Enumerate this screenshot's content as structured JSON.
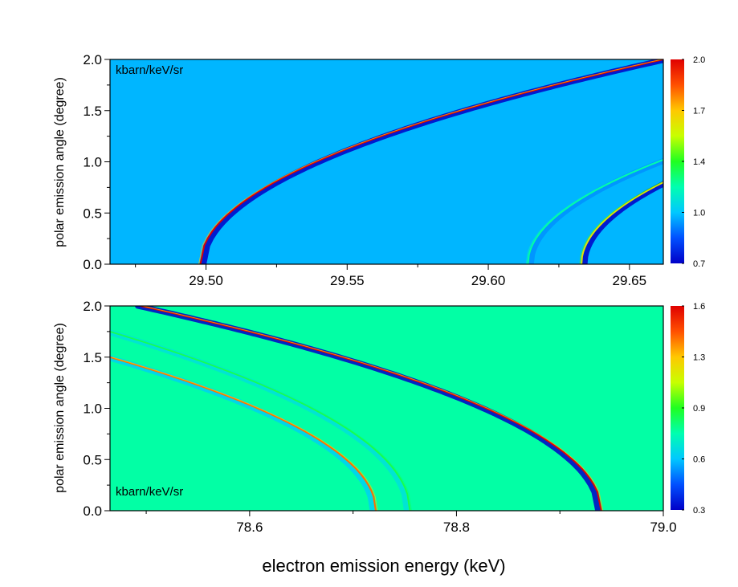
{
  "figure": {
    "xlabel": "electron emission energy (keV)"
  },
  "colormap": [
    "#0000c8",
    "#0050ff",
    "#00c8ff",
    "#00ffb0",
    "#20ff20",
    "#c8ff00",
    "#ffc800",
    "#ff5000",
    "#e00000"
  ],
  "chart_data": [
    {
      "type": "heatmap",
      "ylabel": "polar emission angle (degree)",
      "unit": "kbarn/keV/sr",
      "xlim": [
        29.466,
        29.662
      ],
      "ylim": [
        0.0,
        2.0
      ],
      "x_ticks": [
        "29.50",
        "29.55",
        "29.60",
        "29.65"
      ],
      "y_ticks": [
        "0.0",
        "0.5",
        "1.0",
        "1.5",
        "2.0"
      ],
      "background_value": 1.0,
      "colorbar": {
        "min": 0.7,
        "max": 2.0,
        "ticks": [
          "0.7",
          "1.0",
          "1.4",
          "1.7",
          "2.0"
        ]
      },
      "features": [
        {
          "shape": "upper-branch",
          "x_vertex": 29.498,
          "x_at_ymax": 29.662,
          "y_at_xmax": 2.0,
          "ridge_value": 2.0,
          "trough_value": 0.7
        },
        {
          "shape": "upper-branch",
          "x_vertex": 29.614,
          "x_at_ymax": 29.662,
          "y_at_xmax": 1.02,
          "ridge_value": 1.2,
          "trough_value": 0.95
        },
        {
          "shape": "upper-branch",
          "x_vertex": 29.633,
          "x_at_ymax": 29.662,
          "y_at_xmax": 0.8,
          "ridge_value": 1.6,
          "trough_value": 0.7
        }
      ]
    },
    {
      "type": "heatmap",
      "ylabel": "polar emission angle (degree)",
      "unit": "kbarn/keV/sr",
      "xlim": [
        78.465,
        79.0
      ],
      "ylim": [
        0.0,
        2.0
      ],
      "x_ticks": [
        "78.6",
        "78.8",
        "79.0"
      ],
      "y_ticks": [
        "0.0",
        "0.5",
        "1.0",
        "1.5",
        "2.0"
      ],
      "background_value": 0.8,
      "colorbar": {
        "min": 0.3,
        "max": 1.6,
        "ticks": [
          "0.3",
          "0.6",
          "0.9",
          "1.3",
          "1.6"
        ]
      },
      "features": [
        {
          "shape": "lower-branch",
          "x_vertex": 78.94,
          "x_at_ymax": 78.495,
          "ridge_value": 1.6,
          "trough_value": 0.3
        },
        {
          "shape": "lower-branch",
          "x_vertex": 78.722,
          "x_at_ymax": 78.465,
          "y_at_xmin": 1.5,
          "ridge_value": 1.4,
          "trough_value": 0.65
        },
        {
          "shape": "lower-branch",
          "x_vertex": 78.755,
          "x_at_ymax": 78.465,
          "y_at_xmin": 1.75,
          "ridge_value": 0.9,
          "trough_value": 0.7
        }
      ]
    }
  ]
}
